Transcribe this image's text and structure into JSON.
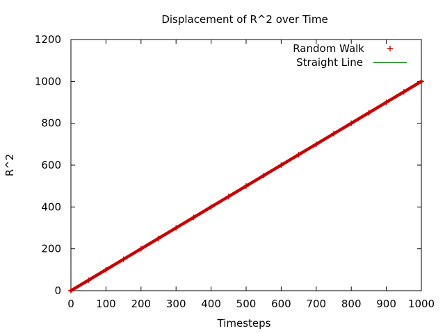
{
  "chart_data": {
    "type": "scatter",
    "title": "Displacement of R^2 over Time",
    "xlabel": "Timesteps",
    "ylabel": "R^2",
    "xlim": [
      0,
      1000
    ],
    "ylim": [
      0,
      1200
    ],
    "xticks": [
      0,
      100,
      200,
      300,
      400,
      500,
      600,
      700,
      800,
      900,
      1000
    ],
    "yticks": [
      0,
      200,
      400,
      600,
      800,
      1000,
      1200
    ],
    "grid": false,
    "legend_position": "top-right",
    "series": [
      {
        "name": "Random Walk",
        "style": "points",
        "marker": "plus",
        "color": "#cc0000",
        "x": [
          0,
          50,
          100,
          150,
          200,
          250,
          300,
          350,
          400,
          450,
          500,
          550,
          600,
          650,
          700,
          750,
          800,
          850,
          900,
          950,
          1000
        ],
        "y": [
          0,
          50,
          100,
          150,
          200,
          250,
          300,
          350,
          400,
          450,
          500,
          550,
          600,
          650,
          700,
          750,
          800,
          850,
          900,
          950,
          1000
        ]
      },
      {
        "name": "Straight Line",
        "style": "line",
        "color": "#008000",
        "x": [
          0,
          1000
        ],
        "y": [
          0,
          1000
        ]
      }
    ]
  }
}
